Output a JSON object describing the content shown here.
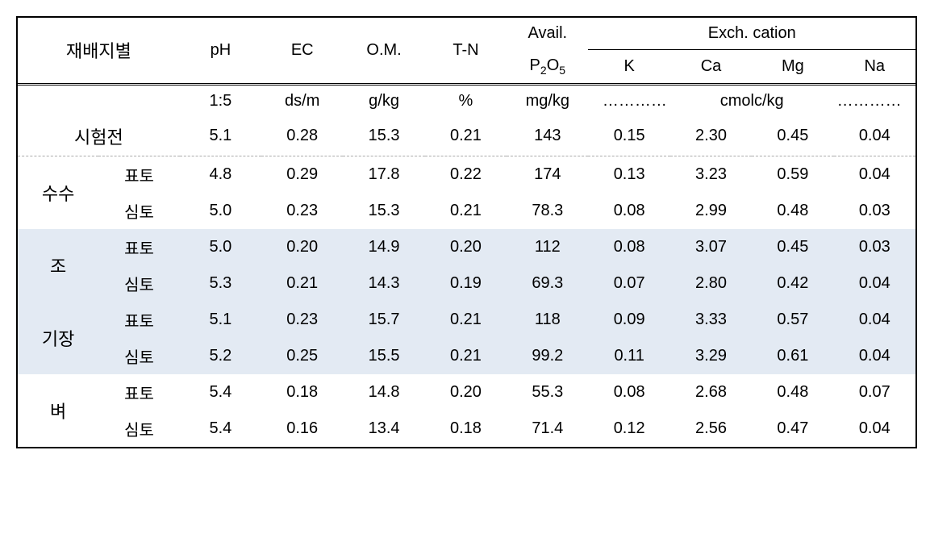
{
  "headers": {
    "group_label": "재배지별",
    "ph": "pH",
    "ec": "EC",
    "om": "O.M.",
    "tn": "T-N",
    "avail_top": "Avail.",
    "avail_bottom_html": "P<sub>2</sub>O<sub>5</sub>",
    "exch_cation": "Exch. cation",
    "k": "K",
    "ca": "Ca",
    "mg": "Mg",
    "na": "Na"
  },
  "units": {
    "ph": "1:5",
    "ec": "ds/m",
    "om": "g/kg",
    "tn": "%",
    "p2o5": "mg/kg",
    "cation_left": "…………",
    "cation_mid": "cmolc/kg",
    "cation_right": "…………"
  },
  "pretest": {
    "label": "시험전",
    "ph": "5.1",
    "ec": "0.28",
    "om": "15.3",
    "tn": "0.21",
    "p2o5": "143",
    "k": "0.15",
    "ca": "2.30",
    "mg": "0.45",
    "na": "0.04"
  },
  "layer_labels": {
    "topsoil": "표토",
    "subsoil": "심토"
  },
  "groups": [
    {
      "name": "수수",
      "shaded": false,
      "rows": [
        {
          "layer": "표토",
          "ph": "4.8",
          "ec": "0.29",
          "om": "17.8",
          "tn": "0.22",
          "p2o5": "174",
          "k": "0.13",
          "ca": "3.23",
          "mg": "0.59",
          "na": "0.04"
        },
        {
          "layer": "심토",
          "ph": "5.0",
          "ec": "0.23",
          "om": "15.3",
          "tn": "0.21",
          "p2o5": "78.3",
          "k": "0.08",
          "ca": "2.99",
          "mg": "0.48",
          "na": "0.03"
        }
      ]
    },
    {
      "name": "조",
      "shaded": true,
      "rows": [
        {
          "layer": "표토",
          "ph": "5.0",
          "ec": "0.20",
          "om": "14.9",
          "tn": "0.20",
          "p2o5": "112",
          "k": "0.08",
          "ca": "3.07",
          "mg": "0.45",
          "na": "0.03"
        },
        {
          "layer": "심토",
          "ph": "5.3",
          "ec": "0.21",
          "om": "14.3",
          "tn": "0.19",
          "p2o5": "69.3",
          "k": "0.07",
          "ca": "2.80",
          "mg": "0.42",
          "na": "0.04"
        }
      ]
    },
    {
      "name": "기장",
      "shaded": true,
      "rows": [
        {
          "layer": "표토",
          "ph": "5.1",
          "ec": "0.23",
          "om": "15.7",
          "tn": "0.21",
          "p2o5": "118",
          "k": "0.09",
          "ca": "3.33",
          "mg": "0.57",
          "na": "0.04"
        },
        {
          "layer": "심토",
          "ph": "5.2",
          "ec": "0.25",
          "om": "15.5",
          "tn": "0.21",
          "p2o5": "99.2",
          "k": "0.11",
          "ca": "3.29",
          "mg": "0.61",
          "na": "0.04"
        }
      ]
    },
    {
      "name": "벼",
      "shaded": false,
      "rows": [
        {
          "layer": "표토",
          "ph": "5.4",
          "ec": "0.18",
          "om": "14.8",
          "tn": "0.20",
          "p2o5": "55.3",
          "k": "0.08",
          "ca": "2.68",
          "mg": "0.48",
          "na": "0.07"
        },
        {
          "layer": "심토",
          "ph": "5.4",
          "ec": "0.16",
          "om": "13.4",
          "tn": "0.18",
          "p2o5": "71.4",
          "k": "0.12",
          "ca": "2.56",
          "mg": "0.47",
          "na": "0.04"
        }
      ]
    }
  ],
  "style": {
    "shaded_bg": "#e3eaf3",
    "border_color": "#000000",
    "dash_color": "#aaaaaa",
    "font_size_cell": 20,
    "font_size_group": 22
  }
}
